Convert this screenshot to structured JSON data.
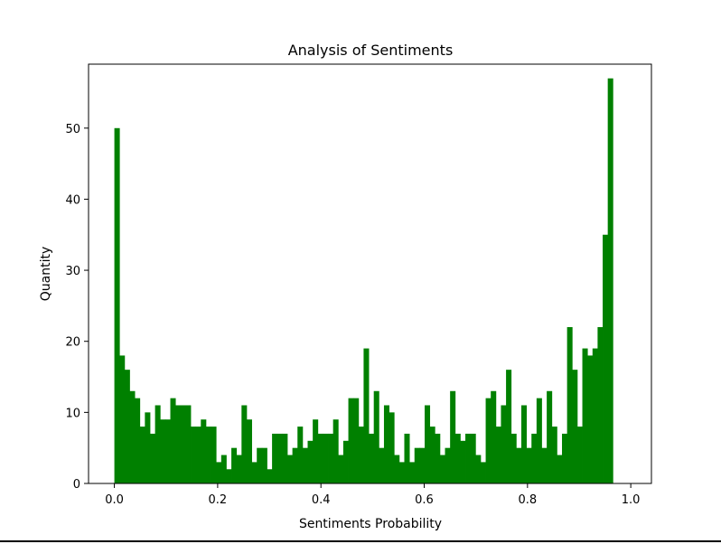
{
  "chart_data": {
    "type": "bar",
    "title": "Analysis of Sentiments",
    "xlabel": "Sentiments Probability",
    "ylabel": "Quantity",
    "xlim": [
      -0.05,
      1.04
    ],
    "ylim": [
      0,
      59
    ],
    "xticks": [
      "0.0",
      "0.2",
      "0.4",
      "0.6",
      "0.8",
      "1.0"
    ],
    "yticks": [
      "0",
      "10",
      "20",
      "30",
      "40",
      "50"
    ],
    "bin_start": 0.0,
    "bin_width": 0.00985,
    "values": [
      50,
      18,
      16,
      13,
      12,
      8,
      10,
      7,
      11,
      9,
      9,
      12,
      11,
      11,
      11,
      8,
      8,
      9,
      8,
      8,
      3,
      4,
      2,
      5,
      4,
      11,
      9,
      3,
      5,
      5,
      2,
      7,
      7,
      7,
      4,
      5,
      8,
      5,
      6,
      9,
      7,
      7,
      7,
      9,
      4,
      6,
      12,
      12,
      8,
      19,
      7,
      13,
      5,
      11,
      10,
      4,
      3,
      7,
      3,
      5,
      5,
      11,
      8,
      7,
      4,
      5,
      13,
      7,
      6,
      7,
      7,
      4,
      3,
      12,
      13,
      8,
      11,
      16,
      7,
      5,
      11,
      5,
      7,
      12,
      5,
      13,
      8,
      4,
      7,
      22,
      16,
      8,
      19,
      18,
      19,
      22,
      35,
      57
    ],
    "bar_color": "#008000",
    "grid": false,
    "legend": "none"
  }
}
